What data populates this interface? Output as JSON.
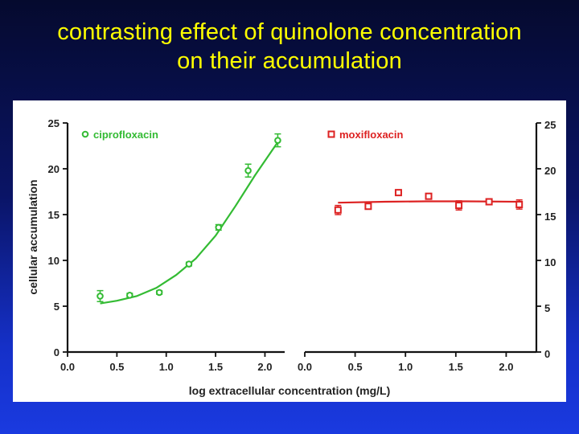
{
  "slide": {
    "title_line1": "contrasting effect of quinolone concentration",
    "title_line2": "on their accumulation"
  },
  "colors": {
    "background_top": "#050a2e",
    "background_bottom": "#1a3ae0",
    "title": "#ffff00",
    "ciprofloxacin": "#33bb33",
    "moxifloxacin": "#dd2222"
  },
  "chart_data": {
    "type": "scatter",
    "xlabel": "log extracellular concentration (mg/L)",
    "ylabel": "cellular accumulation",
    "ylim": [
      0,
      25
    ],
    "yticks": [
      0,
      5,
      10,
      15,
      20,
      25
    ],
    "xticks": [
      "0.0",
      "0.5",
      "1.0",
      "1.5",
      "2.0"
    ],
    "panels": [
      {
        "name": "ciprofloxacin",
        "marker": "circle",
        "color": "#33bb33",
        "legend_position": "top-left",
        "y_axis_side": "left",
        "xlim": [
          0,
          2.2
        ],
        "points": [
          {
            "x": 0.33,
            "y": 6.1,
            "err": 0.6
          },
          {
            "x": 0.63,
            "y": 6.2,
            "err": 0.2
          },
          {
            "x": 0.93,
            "y": 6.5,
            "err": 0.2
          },
          {
            "x": 1.23,
            "y": 9.6,
            "err": 0.2
          },
          {
            "x": 1.53,
            "y": 13.6,
            "err": 0.3
          },
          {
            "x": 1.83,
            "y": 19.8,
            "err": 0.7
          },
          {
            "x": 2.13,
            "y": 23.1,
            "err": 0.7
          }
        ],
        "fit_curve": [
          {
            "x": 0.33,
            "y": 5.3
          },
          {
            "x": 0.5,
            "y": 5.6
          },
          {
            "x": 0.7,
            "y": 6.1
          },
          {
            "x": 0.9,
            "y": 7.0
          },
          {
            "x": 1.1,
            "y": 8.4
          },
          {
            "x": 1.3,
            "y": 10.2
          },
          {
            "x": 1.5,
            "y": 12.7
          },
          {
            "x": 1.7,
            "y": 15.9
          },
          {
            "x": 1.9,
            "y": 19.3
          },
          {
            "x": 2.13,
            "y": 22.9
          }
        ]
      },
      {
        "name": "moxifloxacin",
        "marker": "square",
        "color": "#dd2222",
        "legend_position": "top-left",
        "y_axis_side": "right",
        "xlim": [
          0,
          2.3
        ],
        "points": [
          {
            "x": 0.33,
            "y": 15.5,
            "err": 0.5
          },
          {
            "x": 0.63,
            "y": 15.9,
            "err": 0.3
          },
          {
            "x": 0.93,
            "y": 17.4,
            "err": 0.3
          },
          {
            "x": 1.23,
            "y": 17.0,
            "err": 0.3
          },
          {
            "x": 1.53,
            "y": 16.0,
            "err": 0.5
          },
          {
            "x": 1.83,
            "y": 16.4,
            "err": 0.3
          },
          {
            "x": 2.13,
            "y": 16.1,
            "err": 0.5
          }
        ],
        "fit_curve": [
          {
            "x": 0.33,
            "y": 16.3
          },
          {
            "x": 0.8,
            "y": 16.4
          },
          {
            "x": 1.2,
            "y": 16.45
          },
          {
            "x": 1.6,
            "y": 16.45
          },
          {
            "x": 2.13,
            "y": 16.4
          }
        ]
      }
    ]
  }
}
